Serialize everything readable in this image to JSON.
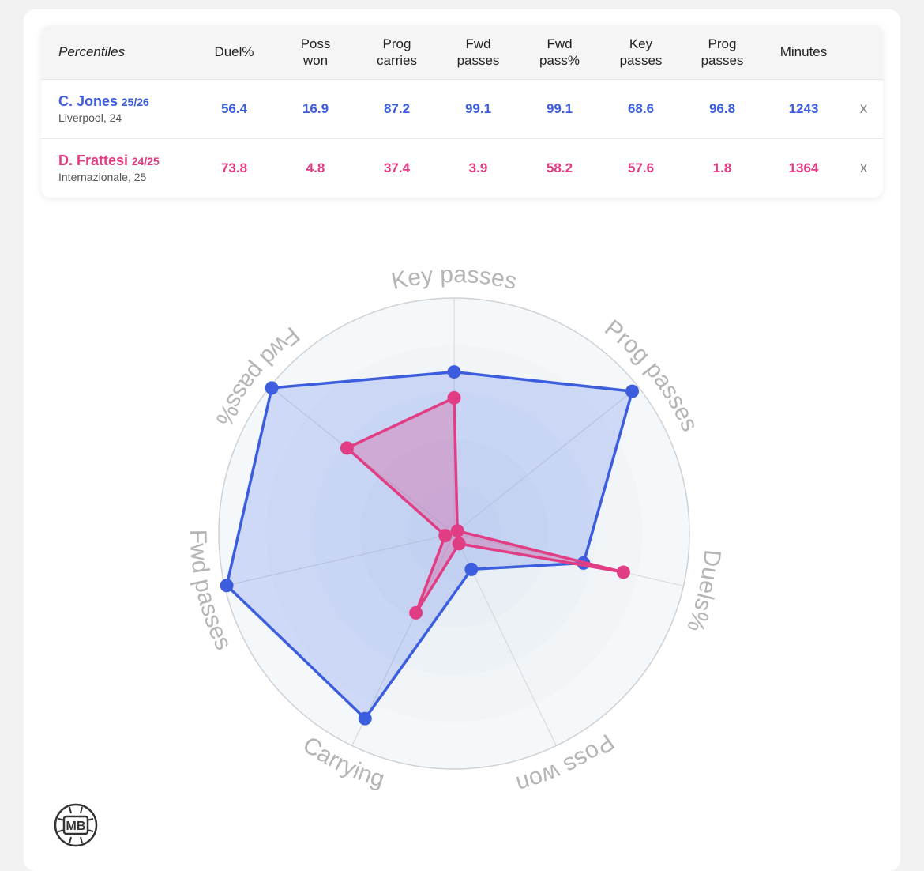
{
  "table": {
    "header_label": "Percentiles",
    "columns": [
      {
        "line1": "Duel%",
        "line2": ""
      },
      {
        "line1": "Poss",
        "line2": "won"
      },
      {
        "line1": "Prog",
        "line2": "carries"
      },
      {
        "line1": "Fwd",
        "line2": "passes"
      },
      {
        "line1": "Fwd",
        "line2": "pass%"
      },
      {
        "line1": "Key",
        "line2": "passes"
      },
      {
        "line1": "Prog",
        "line2": "passes"
      },
      {
        "line1": "Minutes",
        "line2": ""
      }
    ],
    "rows": [
      {
        "name": "C. Jones",
        "season": "25/26",
        "team": "Liverpool, 24",
        "values": [
          "56.4",
          "16.9",
          "87.2",
          "99.1",
          "99.1",
          "68.6",
          "96.8",
          "1243"
        ],
        "remove": "x"
      },
      {
        "name": "D. Frattesi",
        "season": "24/25",
        "team": "Internazionale, 25",
        "values": [
          "73.8",
          "4.8",
          "37.4",
          "3.9",
          "58.2",
          "57.6",
          "1.8",
          "1364"
        ],
        "remove": "x"
      }
    ]
  },
  "colors": {
    "player1": "#3c5ede",
    "player2": "#e13d84",
    "axis_label": "#b5b5b8",
    "ring_stroke": "#cfd1d4"
  },
  "chart_data": {
    "type": "radar",
    "axes": [
      "Key passes",
      "Prog passes",
      "Duels%",
      "Poss won",
      "Carrying",
      "Fwd passes",
      "Fwd pass%"
    ],
    "range": [
      0,
      100
    ],
    "series": [
      {
        "name": "C. Jones",
        "values": [
          68.6,
          96.8,
          56.4,
          16.9,
          87.2,
          99.1,
          99.1
        ]
      },
      {
        "name": "D. Frattesi",
        "values": [
          57.6,
          1.8,
          73.8,
          4.8,
          37.4,
          3.9,
          58.2
        ]
      }
    ]
  },
  "logo": {
    "text": "MB",
    "icon": "football-logo-icon"
  }
}
